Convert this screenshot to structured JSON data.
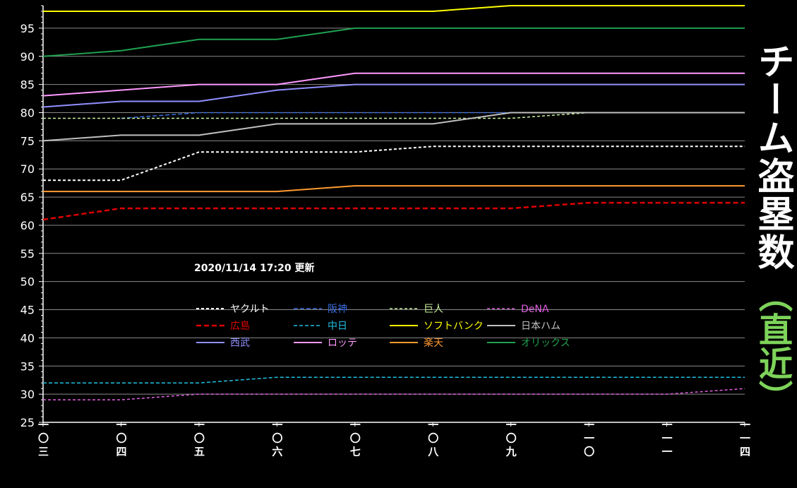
{
  "chart_data": {
    "type": "line",
    "title": "チーム盗塁数（直近）",
    "annotation": "2020/11/14  17:20 更新",
    "x": [
      "一〇三",
      "一〇四",
      "一〇五",
      "一〇六",
      "一〇七",
      "一〇八",
      "一〇九",
      "一一〇",
      "一一一",
      "一一四"
    ],
    "ylim": [
      25,
      99
    ],
    "yticks": [
      25,
      30,
      35,
      40,
      45,
      50,
      55,
      60,
      65,
      70,
      75,
      80,
      85,
      90,
      95
    ],
    "grid": true,
    "legend_position": "center",
    "series": [
      {
        "name": "ヤクルト",
        "color": "#ffffff",
        "dash": "4,3",
        "width": 2,
        "values": [
          68,
          68,
          73,
          73,
          73,
          74,
          74,
          74,
          74,
          74
        ]
      },
      {
        "name": "阪神",
        "color": "#3a6fe0",
        "dash": "6,3",
        "width": 1.5,
        "values": [
          null,
          79,
          80,
          80,
          80,
          80,
          80,
          null,
          null,
          null
        ]
      },
      {
        "name": "巨人",
        "color": "#c8f0a0",
        "dash": "4,3",
        "width": 1.5,
        "values": [
          79,
          79,
          79,
          79,
          79,
          79,
          79,
          80,
          80,
          80
        ]
      },
      {
        "name": "DeNA",
        "color": "#e060e0",
        "dash": "4,3",
        "width": 1.5,
        "values": [
          29,
          29,
          30,
          30,
          30,
          30,
          30,
          30,
          30,
          31
        ]
      },
      {
        "name": "広島",
        "color": "#e00000",
        "dash": "7,4",
        "width": 2.5,
        "values": [
          61,
          63,
          63,
          63,
          63,
          63,
          63,
          64,
          64,
          64
        ]
      },
      {
        "name": "中日",
        "color": "#20c0e0",
        "dash": "5,3",
        "width": 1.5,
        "values": [
          32,
          32,
          32,
          33,
          33,
          33,
          33,
          33,
          33,
          33
        ]
      },
      {
        "name": "ソフトバンク",
        "color": "#ffff00",
        "dash": "",
        "width": 2,
        "values": [
          98,
          98,
          98,
          98,
          98,
          98,
          99,
          99,
          99,
          99
        ]
      },
      {
        "name": "日本ハム",
        "color": "#c0c0c0",
        "dash": "",
        "width": 2,
        "values": [
          75,
          76,
          76,
          78,
          78,
          78,
          80,
          80,
          80,
          80
        ]
      },
      {
        "name": "西武",
        "color": "#9090ff",
        "dash": "",
        "width": 2,
        "values": [
          81,
          82,
          82,
          84,
          85,
          85,
          85,
          85,
          85,
          85
        ]
      },
      {
        "name": "ロッテ",
        "color": "#ff99ff",
        "dash": "",
        "width": 2,
        "values": [
          83,
          84,
          85,
          85,
          87,
          87,
          87,
          87,
          87,
          87
        ]
      },
      {
        "name": "楽天",
        "color": "#ff9a30",
        "dash": "",
        "width": 2,
        "values": [
          66,
          66,
          66,
          66,
          67,
          67,
          67,
          67,
          67,
          67
        ]
      },
      {
        "name": "オリックス",
        "color": "#20a050",
        "dash": "",
        "width": 2,
        "values": [
          90,
          91,
          93,
          93,
          95,
          95,
          95,
          95,
          95,
          95
        ]
      }
    ]
  },
  "title_main": "チーム盗塁数",
  "title_sub": "（直近）",
  "colors": {
    "background": "#000000",
    "grid": "#8a8a8a",
    "subtitle": "#7dd35a"
  }
}
